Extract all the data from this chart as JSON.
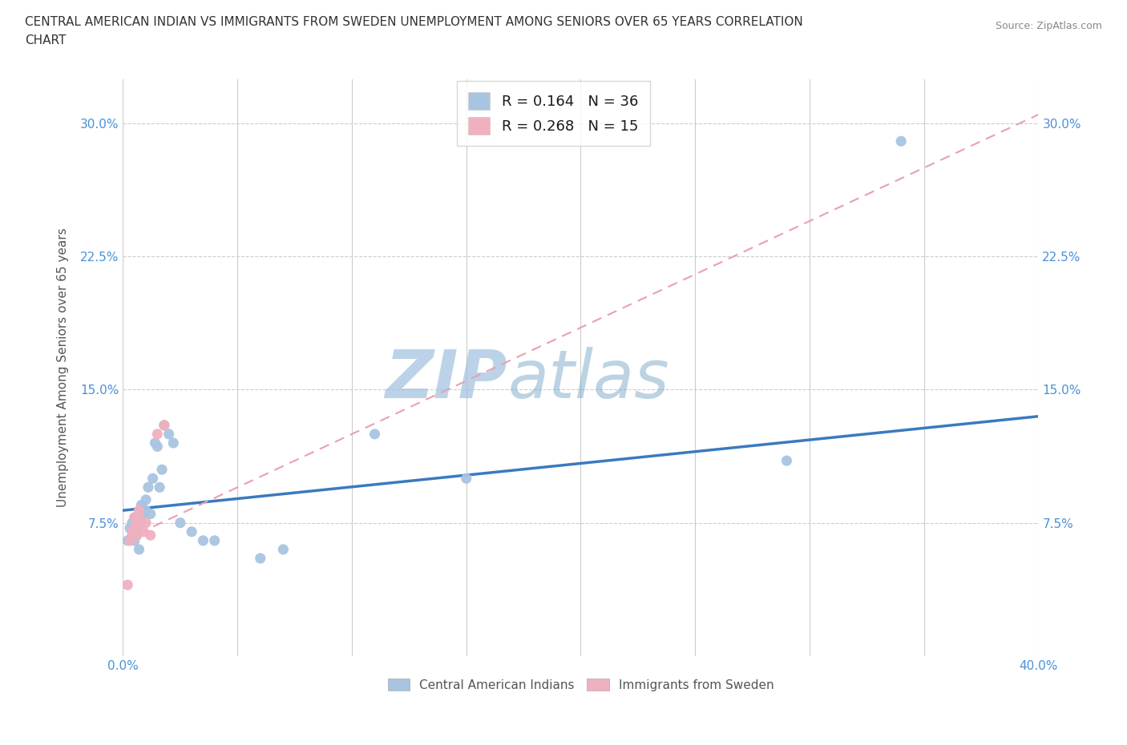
{
  "title": "CENTRAL AMERICAN INDIAN VS IMMIGRANTS FROM SWEDEN UNEMPLOYMENT AMONG SENIORS OVER 65 YEARS CORRELATION\nCHART",
  "source": "Source: ZipAtlas.com",
  "ylabel": "Unemployment Among Seniors over 65 years",
  "xlim": [
    0.0,
    0.4
  ],
  "ylim": [
    0.0,
    0.325
  ],
  "xticks": [
    0.0,
    0.05,
    0.1,
    0.15,
    0.2,
    0.25,
    0.3,
    0.35,
    0.4
  ],
  "yticks": [
    0.0,
    0.075,
    0.15,
    0.225,
    0.3
  ],
  "yticklabels": [
    "",
    "7.5%",
    "15.0%",
    "22.5%",
    "30.0%"
  ],
  "blue_R": 0.164,
  "blue_N": 36,
  "pink_R": 0.268,
  "pink_N": 15,
  "blue_color": "#a8c4e0",
  "pink_color": "#f0b0c0",
  "trend_blue_color": "#3a7abf",
  "trend_pink_color": "#e8a0b0",
  "watermark_zip": "ZIP",
  "watermark_atlas": "atlas",
  "watermark_color": "#c8ddf0",
  "blue_scatter_x": [
    0.002,
    0.003,
    0.004,
    0.004,
    0.005,
    0.005,
    0.005,
    0.006,
    0.006,
    0.007,
    0.007,
    0.008,
    0.008,
    0.009,
    0.01,
    0.01,
    0.011,
    0.012,
    0.013,
    0.014,
    0.015,
    0.016,
    0.017,
    0.018,
    0.02,
    0.022,
    0.025,
    0.03,
    0.035,
    0.04,
    0.06,
    0.07,
    0.11,
    0.15,
    0.29,
    0.34
  ],
  "blue_scatter_y": [
    0.065,
    0.072,
    0.068,
    0.075,
    0.07,
    0.065,
    0.078,
    0.072,
    0.068,
    0.075,
    0.06,
    0.085,
    0.078,
    0.08,
    0.088,
    0.082,
    0.095,
    0.08,
    0.1,
    0.12,
    0.118,
    0.095,
    0.105,
    0.13,
    0.125,
    0.12,
    0.075,
    0.07,
    0.065,
    0.065,
    0.055,
    0.06,
    0.125,
    0.1,
    0.11,
    0.29
  ],
  "pink_scatter_x": [
    0.002,
    0.003,
    0.004,
    0.005,
    0.005,
    0.006,
    0.006,
    0.007,
    0.007,
    0.008,
    0.009,
    0.01,
    0.012,
    0.015,
    0.018
  ],
  "pink_scatter_y": [
    0.04,
    0.065,
    0.07,
    0.072,
    0.078,
    0.068,
    0.075,
    0.078,
    0.082,
    0.075,
    0.07,
    0.075,
    0.068,
    0.125,
    0.13
  ],
  "blue_trend_x0": 0.0,
  "blue_trend_y0": 0.082,
  "blue_trend_x1": 0.4,
  "blue_trend_y1": 0.135,
  "pink_trend_x0": 0.0,
  "pink_trend_y0": 0.065,
  "pink_trend_x1": 0.4,
  "pink_trend_y1": 0.305
}
